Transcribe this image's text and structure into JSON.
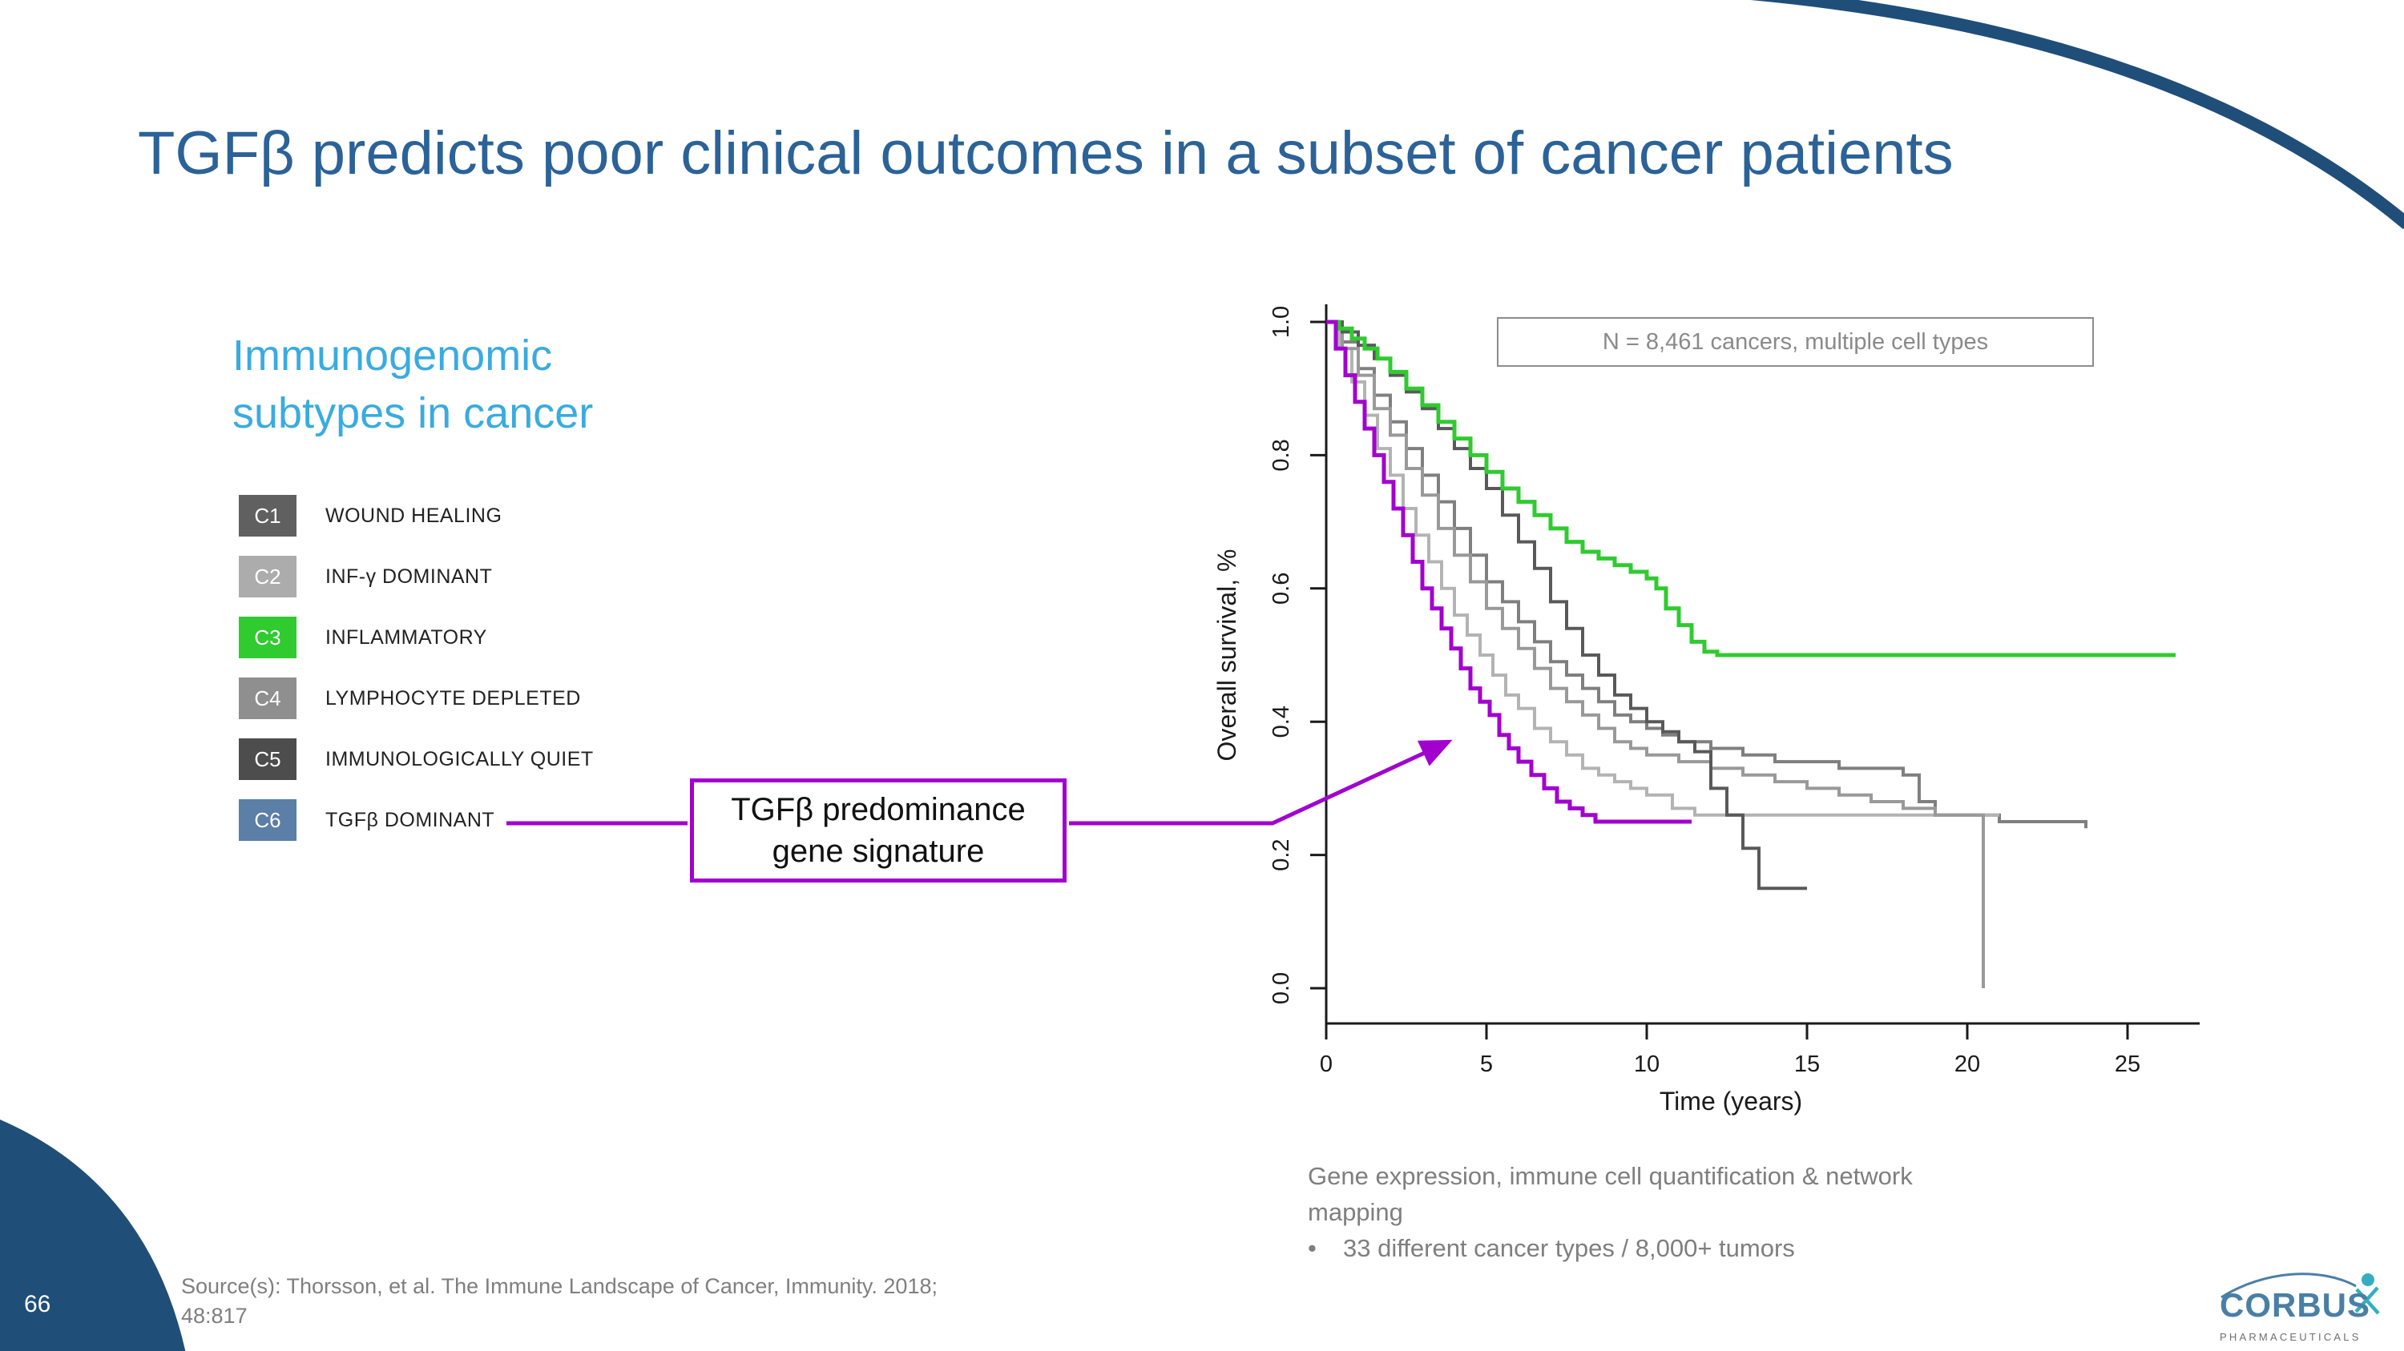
{
  "slide": {
    "title": "TGFβ predicts poor clinical outcomes in a subset of cancer patients",
    "page_number": "66",
    "title_color": "#2B6298",
    "accent_navy": "#1F4E79"
  },
  "left_panel": {
    "heading": "Immunogenomic subtypes in cancer",
    "heading_color": "#3AABE0",
    "legend": [
      {
        "code": "C1",
        "label": "WOUND HEALING",
        "color": "#606060"
      },
      {
        "code": "C2",
        "label": "INF-γ DOMINANT",
        "color": "#ACACAC"
      },
      {
        "code": "C3",
        "label": "INFLAMMATORY",
        "color": "#2FCB2F"
      },
      {
        "code": "C4",
        "label": "LYMPHOCYTE DEPLETED",
        "color": "#8F8F8F"
      },
      {
        "code": "C5",
        "label": "IMMUNOLOGICALLY QUIET",
        "color": "#4D4D4D"
      },
      {
        "code": "C6",
        "label": "TGFβ DOMINANT",
        "color": "#5B7FA6"
      }
    ],
    "callout": {
      "line1": "TGFβ predominance",
      "line2": "gene signature",
      "accent": "#A200CF"
    }
  },
  "chart_data": {
    "type": "line",
    "subtype": "kaplan-meier-step",
    "title": "",
    "annotation": "N = 8,461 cancers, multiple cell types",
    "xlabel": "Time (years)",
    "ylabel": "Overall survival, %",
    "xlim": [
      0,
      27
    ],
    "ylim": [
      0.0,
      1.0
    ],
    "xticks": [
      0,
      5,
      10,
      15,
      20,
      25
    ],
    "yticks": [
      0.0,
      0.2,
      0.4,
      0.6,
      0.8,
      1.0
    ],
    "ytick_labels": [
      "0.0",
      "0.2",
      "0.4",
      "0.6",
      "0.8",
      "1.0"
    ],
    "grid": false,
    "legend_position": "none",
    "series": [
      {
        "id": "c1",
        "name": "C1 Wound Healing",
        "color": "#7F7F7F",
        "points": [
          [
            0,
            1
          ],
          [
            0.5,
            0.97
          ],
          [
            1,
            0.93
          ],
          [
            1.5,
            0.89
          ],
          [
            2,
            0.85
          ],
          [
            2.5,
            0.81
          ],
          [
            3,
            0.77
          ],
          [
            3.5,
            0.73
          ],
          [
            4,
            0.69
          ],
          [
            4.5,
            0.65
          ],
          [
            5,
            0.61
          ],
          [
            5.5,
            0.58
          ],
          [
            6,
            0.55
          ],
          [
            6.5,
            0.52
          ],
          [
            7,
            0.49
          ],
          [
            7.5,
            0.47
          ],
          [
            8,
            0.45
          ],
          [
            8.5,
            0.43
          ],
          [
            9,
            0.41
          ],
          [
            9.5,
            0.4
          ],
          [
            10,
            0.39
          ],
          [
            10.5,
            0.38
          ],
          [
            11,
            0.37
          ],
          [
            12,
            0.36
          ],
          [
            13,
            0.35
          ],
          [
            14,
            0.34
          ],
          [
            15,
            0.34
          ],
          [
            16,
            0.33
          ],
          [
            17,
            0.33
          ],
          [
            18,
            0.32
          ],
          [
            18.5,
            0.28
          ],
          [
            19,
            0.26
          ],
          [
            20,
            0.26
          ],
          [
            21,
            0.25
          ],
          [
            22,
            0.25
          ],
          [
            23.7,
            0.24
          ]
        ]
      },
      {
        "id": "c2",
        "name": "C2 INF-γ Dominant",
        "color": "#B3B3B3",
        "points": [
          [
            0,
            1
          ],
          [
            0.4,
            0.96
          ],
          [
            0.8,
            0.91
          ],
          [
            1.2,
            0.86
          ],
          [
            1.6,
            0.81
          ],
          [
            2,
            0.77
          ],
          [
            2.4,
            0.72
          ],
          [
            2.8,
            0.68
          ],
          [
            3.2,
            0.64
          ],
          [
            3.6,
            0.6
          ],
          [
            4,
            0.56
          ],
          [
            4.4,
            0.53
          ],
          [
            4.8,
            0.5
          ],
          [
            5.2,
            0.47
          ],
          [
            5.6,
            0.44
          ],
          [
            6,
            0.42
          ],
          [
            6.5,
            0.39
          ],
          [
            7,
            0.37
          ],
          [
            7.5,
            0.35
          ],
          [
            8,
            0.33
          ],
          [
            8.5,
            0.32
          ],
          [
            9,
            0.31
          ],
          [
            9.5,
            0.3
          ],
          [
            10,
            0.29
          ],
          [
            10.8,
            0.27
          ],
          [
            11.5,
            0.26
          ],
          [
            21,
            0.26
          ]
        ]
      },
      {
        "id": "c4",
        "name": "C4 Lymphocyte Depleted",
        "color": "#999999",
        "points": [
          [
            0,
            1
          ],
          [
            0.5,
            0.96
          ],
          [
            1,
            0.92
          ],
          [
            1.5,
            0.87
          ],
          [
            2,
            0.83
          ],
          [
            2.5,
            0.78
          ],
          [
            3,
            0.74
          ],
          [
            3.5,
            0.69
          ],
          [
            4,
            0.65
          ],
          [
            4.5,
            0.61
          ],
          [
            5,
            0.57
          ],
          [
            5.5,
            0.54
          ],
          [
            6,
            0.51
          ],
          [
            6.5,
            0.48
          ],
          [
            7,
            0.45
          ],
          [
            7.5,
            0.43
          ],
          [
            8,
            0.41
          ],
          [
            8.5,
            0.39
          ],
          [
            9,
            0.37
          ],
          [
            9.5,
            0.36
          ],
          [
            10,
            0.35
          ],
          [
            11,
            0.34
          ],
          [
            12,
            0.33
          ],
          [
            13,
            0.32
          ],
          [
            14,
            0.31
          ],
          [
            15,
            0.3
          ],
          [
            16,
            0.29
          ],
          [
            17,
            0.28
          ],
          [
            18,
            0.27
          ],
          [
            19,
            0.26
          ],
          [
            20,
            0.26
          ],
          [
            20.5,
            0
          ]
        ]
      },
      {
        "id": "c5",
        "name": "C5 Immunologically Quiet",
        "color": "#595959",
        "points": [
          [
            0,
            1
          ],
          [
            0.5,
            0.985
          ],
          [
            1,
            0.965
          ],
          [
            1.5,
            0.945
          ],
          [
            2,
            0.92
          ],
          [
            2.5,
            0.895
          ],
          [
            3,
            0.87
          ],
          [
            3.5,
            0.84
          ],
          [
            4,
            0.81
          ],
          [
            4.5,
            0.78
          ],
          [
            5,
            0.75
          ],
          [
            5.5,
            0.71
          ],
          [
            6,
            0.67
          ],
          [
            6.5,
            0.63
          ],
          [
            7,
            0.58
          ],
          [
            7.5,
            0.54
          ],
          [
            8,
            0.5
          ],
          [
            8.5,
            0.47
          ],
          [
            9,
            0.44
          ],
          [
            9.5,
            0.42
          ],
          [
            10,
            0.4
          ],
          [
            10.5,
            0.385
          ],
          [
            11,
            0.37
          ],
          [
            11.5,
            0.355
          ],
          [
            12,
            0.3
          ],
          [
            12.5,
            0.26
          ],
          [
            13,
            0.21
          ],
          [
            13.5,
            0.15
          ],
          [
            15,
            0.15
          ]
        ]
      },
      {
        "id": "c3",
        "name": "C3 Inflammatory",
        "color": "#2FCB2F",
        "points": [
          [
            0,
            1
          ],
          [
            0.4,
            0.99
          ],
          [
            0.8,
            0.975
          ],
          [
            1.2,
            0.96
          ],
          [
            1.6,
            0.945
          ],
          [
            2,
            0.925
          ],
          [
            2.5,
            0.9
          ],
          [
            3,
            0.875
          ],
          [
            3.5,
            0.85
          ],
          [
            4,
            0.825
          ],
          [
            4.5,
            0.8
          ],
          [
            5,
            0.775
          ],
          [
            5.5,
            0.75
          ],
          [
            6,
            0.73
          ],
          [
            6.5,
            0.71
          ],
          [
            7,
            0.69
          ],
          [
            7.5,
            0.67
          ],
          [
            8,
            0.655
          ],
          [
            8.5,
            0.645
          ],
          [
            9,
            0.635
          ],
          [
            9.5,
            0.625
          ],
          [
            10,
            0.615
          ],
          [
            10.3,
            0.6
          ],
          [
            10.6,
            0.57
          ],
          [
            11,
            0.545
          ],
          [
            11.4,
            0.52
          ],
          [
            11.8,
            0.505
          ],
          [
            12.2,
            0.5
          ],
          [
            26.5,
            0.5
          ]
        ]
      },
      {
        "id": "c6",
        "name": "C6 TGFβ Dominant",
        "color": "#A200CF",
        "points": [
          [
            0,
            1
          ],
          [
            0.3,
            0.96
          ],
          [
            0.6,
            0.92
          ],
          [
            0.9,
            0.88
          ],
          [
            1.2,
            0.84
          ],
          [
            1.5,
            0.8
          ],
          [
            1.8,
            0.76
          ],
          [
            2.1,
            0.72
          ],
          [
            2.4,
            0.68
          ],
          [
            2.7,
            0.64
          ],
          [
            3,
            0.6
          ],
          [
            3.3,
            0.57
          ],
          [
            3.6,
            0.54
          ],
          [
            3.9,
            0.51
          ],
          [
            4.2,
            0.48
          ],
          [
            4.5,
            0.45
          ],
          [
            4.8,
            0.43
          ],
          [
            5.1,
            0.41
          ],
          [
            5.4,
            0.38
          ],
          [
            5.7,
            0.36
          ],
          [
            6,
            0.34
          ],
          [
            6.4,
            0.32
          ],
          [
            6.8,
            0.3
          ],
          [
            7.2,
            0.28
          ],
          [
            7.6,
            0.27
          ],
          [
            8,
            0.26
          ],
          [
            8.4,
            0.25
          ],
          [
            11.4,
            0.25
          ]
        ]
      }
    ]
  },
  "footer": {
    "line1": "Gene expression, immune cell quantification & network",
    "line2": "mapping",
    "bullet_marker": "•",
    "bullet_text": "33 different cancer types / 8,000+ tumors"
  },
  "source": {
    "line1": "Source(s): Thorsson, et al. The Immune Landscape of Cancer, Immunity. 2018;",
    "line2": "48:817"
  },
  "logo": {
    "name": "CORBUS",
    "sub": "PHARMACEUTICALS"
  }
}
